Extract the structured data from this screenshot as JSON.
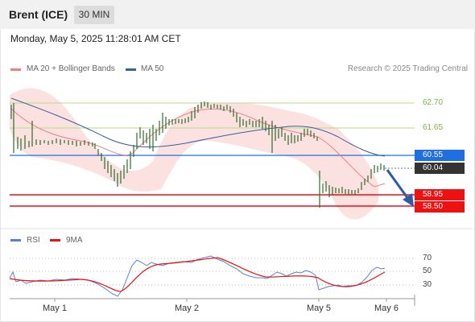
{
  "header": {
    "instrument": "Brent (ICE)",
    "timeframe": "30 MIN"
  },
  "timestamp": "Monday, May 5, 2025 11:28:01 AM CET",
  "legend": {
    "items": [
      {
        "label": "MA 20 + Bollinger Bands",
        "color": "#f08080"
      },
      {
        "label": "MA 50",
        "color": "#3a5fa0"
      }
    ],
    "source": "Research © 2025 Trading Central"
  },
  "levels": {
    "resistance": [
      {
        "label": "62.70",
        "color": "#7ab648"
      },
      {
        "label": "61.65",
        "color": "#7ab648"
      }
    ],
    "pivot": {
      "label": "60.55",
      "color": "#1f6fe0"
    },
    "last_price": {
      "label": "60.04",
      "color": "#333333"
    },
    "support": [
      {
        "label": "58.95",
        "color": "#ee1111"
      },
      {
        "label": "58.50",
        "color": "#ee1111"
      }
    ]
  },
  "x_axis": [
    "May 1",
    "May 2",
    "May 5",
    "May 6"
  ],
  "rsi_panel": {
    "legend": [
      {
        "label": "RSI",
        "color": "#5b7fd6"
      },
      {
        "label": "9MA",
        "color": "#ee1111"
      }
    ],
    "levels": [
      "70",
      "50",
      "30"
    ]
  },
  "chart_data": {
    "type": "line",
    "series": [
      {
        "name": "MA 20 + Bollinger Bands"
      },
      {
        "name": "MA 50"
      }
    ],
    "horizontal_levels": [
      62.7,
      61.65,
      60.55,
      58.95,
      58.5
    ],
    "last_price": 60.04,
    "price_path": [
      61.8,
      60.3,
      60.2,
      60.3,
      60.2,
      59.6,
      59.0,
      59.3,
      60.3,
      61.0,
      62.2,
      62.5,
      62.7,
      62.5,
      62.1,
      61.9,
      61.8,
      60.3,
      61.7,
      61.6,
      59.4,
      59.1,
      59.0,
      59.3,
      59.8,
      60.04
    ],
    "rsi_levels": [
      70,
      50,
      30
    ]
  }
}
